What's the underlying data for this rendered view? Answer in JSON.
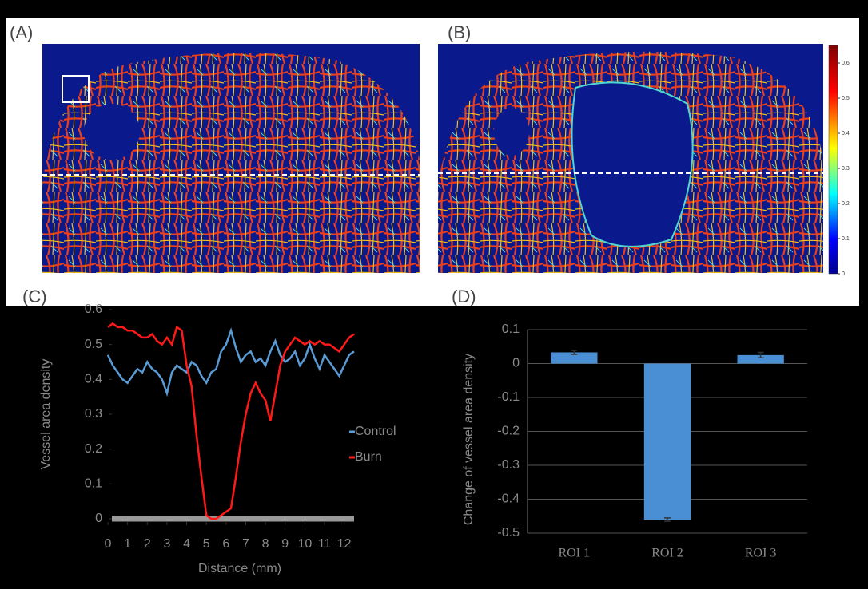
{
  "panel_labels": [
    "(A)",
    "(B)",
    "(C)",
    "(D)"
  ],
  "colorbar": {
    "lim": [
      0,
      0.65
    ],
    "ticks": [
      0,
      0.1,
      0.2,
      0.3,
      0.4,
      0.5,
      0.6
    ]
  },
  "chart_data": [
    {
      "type": "line",
      "x_label": "Distance (mm)",
      "y_label": "Vessel area density",
      "x": [
        0,
        0.25,
        0.5,
        0.75,
        1,
        1.25,
        1.5,
        1.75,
        2,
        2.25,
        2.5,
        2.75,
        3,
        3.25,
        3.5,
        3.75,
        4,
        4.25,
        4.5,
        4.75,
        5,
        5.25,
        5.5,
        5.75,
        6,
        6.25,
        6.5,
        6.75,
        7,
        7.25,
        7.5,
        7.75,
        8,
        8.25,
        8.5,
        8.75,
        9,
        9.25,
        9.5,
        9.75,
        10,
        10.25,
        10.5,
        10.75,
        11,
        11.25,
        11.5,
        11.75,
        12,
        12.25,
        12.5
      ],
      "series": [
        {
          "name": "Control",
          "color": "#5b9bd5",
          "values": [
            0.47,
            0.44,
            0.42,
            0.4,
            0.39,
            0.41,
            0.43,
            0.42,
            0.45,
            0.43,
            0.42,
            0.4,
            0.36,
            0.42,
            0.44,
            0.43,
            0.42,
            0.45,
            0.44,
            0.41,
            0.39,
            0.42,
            0.43,
            0.48,
            0.5,
            0.54,
            0.49,
            0.45,
            0.47,
            0.48,
            0.45,
            0.46,
            0.44,
            0.48,
            0.51,
            0.47,
            0.45,
            0.46,
            0.48,
            0.44,
            0.46,
            0.5,
            0.46,
            0.43,
            0.47,
            0.45,
            0.43,
            0.41,
            0.44,
            0.47,
            0.48
          ]
        },
        {
          "name": "Burn",
          "color": "#ff1a1a",
          "values": [
            0.55,
            0.56,
            0.55,
            0.55,
            0.54,
            0.54,
            0.53,
            0.52,
            0.52,
            0.53,
            0.51,
            0.5,
            0.52,
            0.5,
            0.55,
            0.54,
            0.44,
            0.38,
            0.24,
            0.12,
            0.01,
            0,
            0,
            0.01,
            0.02,
            0.03,
            0.12,
            0.22,
            0.3,
            0.36,
            0.39,
            0.36,
            0.34,
            0.28,
            0.36,
            0.44,
            0.48,
            0.5,
            0.52,
            0.51,
            0.5,
            0.51,
            0.5,
            0.51,
            0.5,
            0.5,
            0.49,
            0.48,
            0.5,
            0.52,
            0.53
          ]
        }
      ],
      "xlim": [
        0,
        12.5
      ],
      "xticks": [
        0,
        1,
        2,
        3,
        4,
        5,
        6,
        7,
        8,
        9,
        10,
        11,
        12
      ],
      "ylim": [
        0,
        0.6
      ],
      "yticks": [
        0,
        0.1,
        0.2,
        0.3,
        0.4,
        0.5,
        0.6
      ]
    },
    {
      "type": "bar",
      "y_label": "Change of vessel area density",
      "categories": [
        "ROI 1",
        "ROI 2",
        "ROI 3"
      ],
      "values": [
        0.033,
        -0.46,
        0.025
      ],
      "errors": [
        0.006,
        0.005,
        0.008
      ],
      "color": "#4a8fd4",
      "ylim": [
        -0.5,
        0.1
      ],
      "yticks": [
        0.1,
        0,
        -0.1,
        -0.2,
        -0.3,
        -0.4,
        -0.5
      ],
      "grid": true
    }
  ]
}
